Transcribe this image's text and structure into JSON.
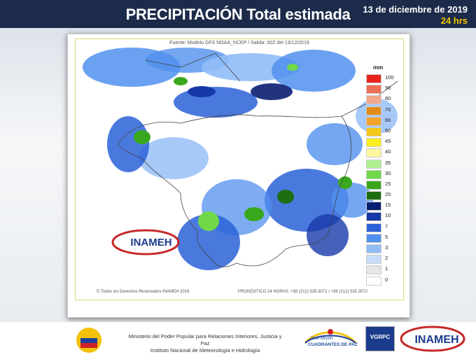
{
  "header": {
    "title": "PRECIPITACIÓN Total estimada",
    "date": "13  de diciembre de 2019",
    "period": "24 hrs"
  },
  "map": {
    "source_line": "Fuente: Modelo GFS NOAA_NCEP / Salida: 00Z del  13/12/2019",
    "copyright": "© Todos los Derechos Reservados INAMEH 2019",
    "forecast_phone": "PRONÓSTICO 24 HORAS: +58 (212) 535.3071 / +58 (212) 535.3072",
    "watermark_logo": "INAMEH",
    "legend_unit": "mm",
    "legend": [
      {
        "label": "100",
        "color": "#e8231c"
      },
      {
        "label": "90",
        "color": "#ee6d55"
      },
      {
        "label": "80",
        "color": "#f2a78a"
      },
      {
        "label": "70",
        "color": "#e08a1a"
      },
      {
        "label": "60",
        "color": "#f0a22a"
      },
      {
        "label": "50",
        "color": "#f6c818"
      },
      {
        "label": "45",
        "color": "#fbf01e"
      },
      {
        "label": "40",
        "color": "#fdf8a0"
      },
      {
        "label": "35",
        "color": "#b0ef90"
      },
      {
        "label": "30",
        "color": "#6fd94a"
      },
      {
        "label": "25",
        "color": "#3aa81e"
      },
      {
        "label": "20",
        "color": "#1c6e10"
      },
      {
        "label": "15",
        "color": "#0a1e72"
      },
      {
        "label": "10",
        "color": "#1639a8"
      },
      {
        "label": "7",
        "color": "#2a62d8"
      },
      {
        "label": "5",
        "color": "#5190ee"
      },
      {
        "label": "3",
        "color": "#91bcf6"
      },
      {
        "label": "2",
        "color": "#c9ddf9"
      },
      {
        "label": "1",
        "color": "#e6e6e6"
      },
      {
        "label": "0",
        "color": "#ffffff"
      }
    ]
  },
  "footer": {
    "ministry_line1": "Ministerio del Poder Popular para Relaciones Interiores, Justicia y Paz",
    "ministry_line2": "Instituto  Nacional de Meteorología e Hidrología",
    "gran_mision_line1": "Gran Misión",
    "gran_mision_line2": "CUADRANTES DE PAZ",
    "vgrpc": "VGRPC",
    "inameh_logo": "INAMEH"
  }
}
